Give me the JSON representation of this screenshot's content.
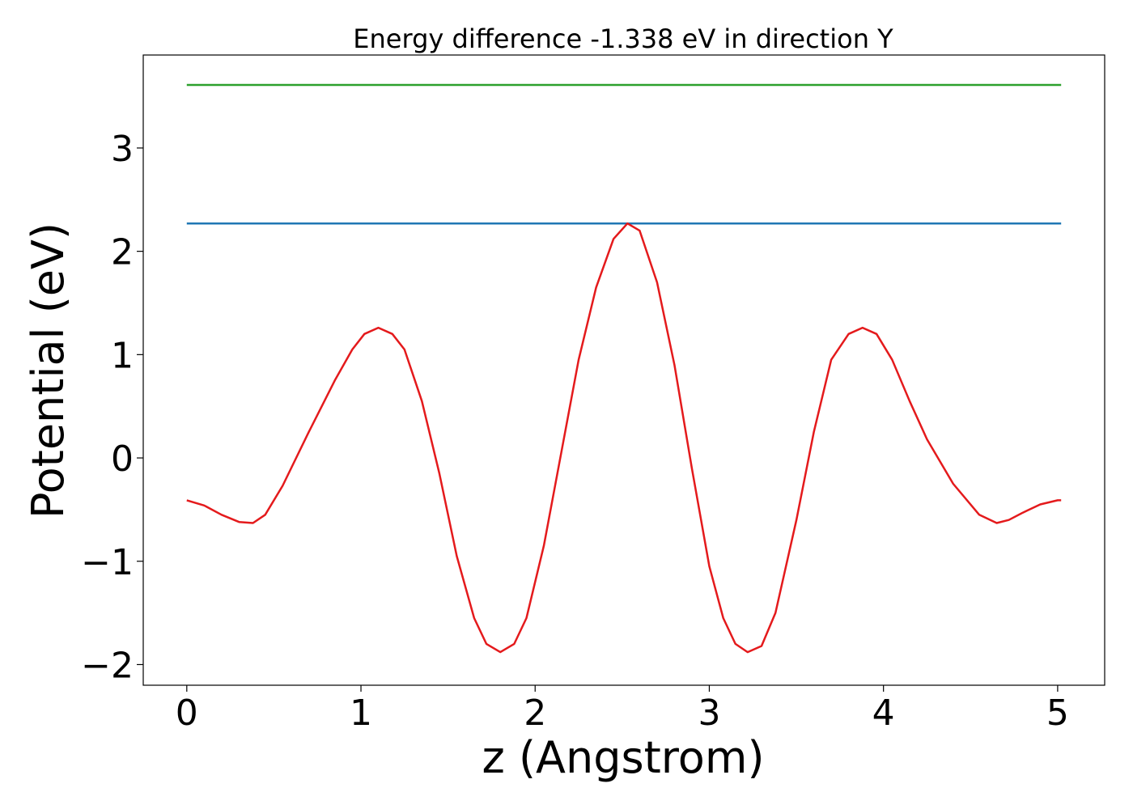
{
  "chart_data": {
    "type": "line",
    "title": "Energy difference -1.338 eV in direction Y",
    "xlabel": "z (Angstrom)",
    "ylabel": "Potential (eV)",
    "xlim": [
      -0.25,
      5.27
    ],
    "ylim": [
      -2.2,
      3.9
    ],
    "grid": false,
    "legend": "none",
    "x_ticks": [
      0,
      1,
      2,
      3,
      4,
      5
    ],
    "x_tick_labels": [
      "0",
      "1",
      "2",
      "3",
      "4",
      "5"
    ],
    "y_ticks": [
      -2,
      -1,
      0,
      1,
      2,
      3
    ],
    "y_tick_labels": [
      "−2",
      "−1",
      "0",
      "1",
      "2",
      "3"
    ],
    "series": [
      {
        "color": "#2ca02c",
        "x": [
          0,
          5.02
        ],
        "y": [
          3.61,
          3.61
        ]
      },
      {
        "color": "#1f77b4",
        "x": [
          0,
          5.02
        ],
        "y": [
          2.27,
          2.27
        ]
      },
      {
        "color": "#e41a1c",
        "x": [
          0,
          0.1,
          0.2,
          0.3,
          0.38,
          0.45,
          0.55,
          0.7,
          0.85,
          0.95,
          1.02,
          1.1,
          1.18,
          1.25,
          1.35,
          1.45,
          1.55,
          1.65,
          1.72,
          1.8,
          1.88,
          1.95,
          2.05,
          2.15,
          2.25,
          2.35,
          2.45,
          2.53,
          2.6,
          2.7,
          2.8,
          2.9,
          3.0,
          3.08,
          3.15,
          3.22,
          3.3,
          3.38,
          3.5,
          3.6,
          3.7,
          3.8,
          3.88,
          3.96,
          4.05,
          4.15,
          4.25,
          4.4,
          4.55,
          4.65,
          4.72,
          4.8,
          4.9,
          5.0,
          5.02
        ],
        "y": [
          -0.41,
          -0.46,
          -0.55,
          -0.62,
          -0.63,
          -0.55,
          -0.27,
          0.25,
          0.75,
          1.05,
          1.2,
          1.26,
          1.2,
          1.05,
          0.55,
          -0.15,
          -0.95,
          -1.55,
          -1.8,
          -1.88,
          -1.8,
          -1.55,
          -0.85,
          0.05,
          0.95,
          1.65,
          2.12,
          2.27,
          2.2,
          1.7,
          0.9,
          -0.1,
          -1.05,
          -1.55,
          -1.8,
          -1.88,
          -1.82,
          -1.5,
          -0.6,
          0.25,
          0.95,
          1.2,
          1.26,
          1.2,
          0.95,
          0.55,
          0.18,
          -0.25,
          -0.55,
          -0.63,
          -0.6,
          -0.53,
          -0.45,
          -0.41,
          -0.41
        ]
      }
    ]
  }
}
